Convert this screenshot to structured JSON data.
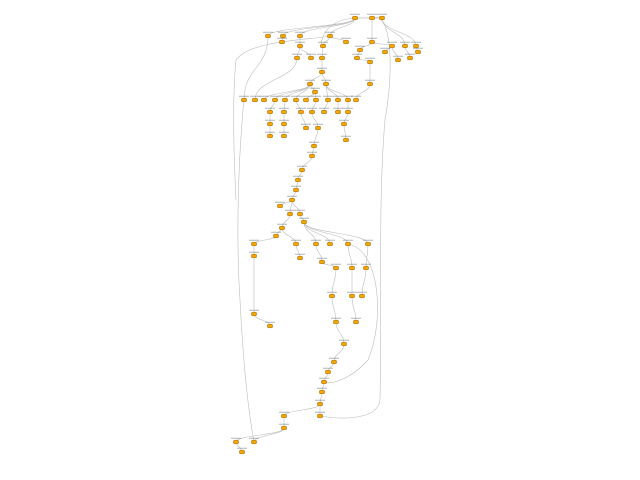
{
  "diagram": {
    "kind": "workflow-graph",
    "node_color": "#f5a700",
    "node_stroke": "#7a5200",
    "edge_color": "#bdbdbd",
    "background": "#ffffff",
    "node_count_visible": 95,
    "labels_legible": false
  }
}
